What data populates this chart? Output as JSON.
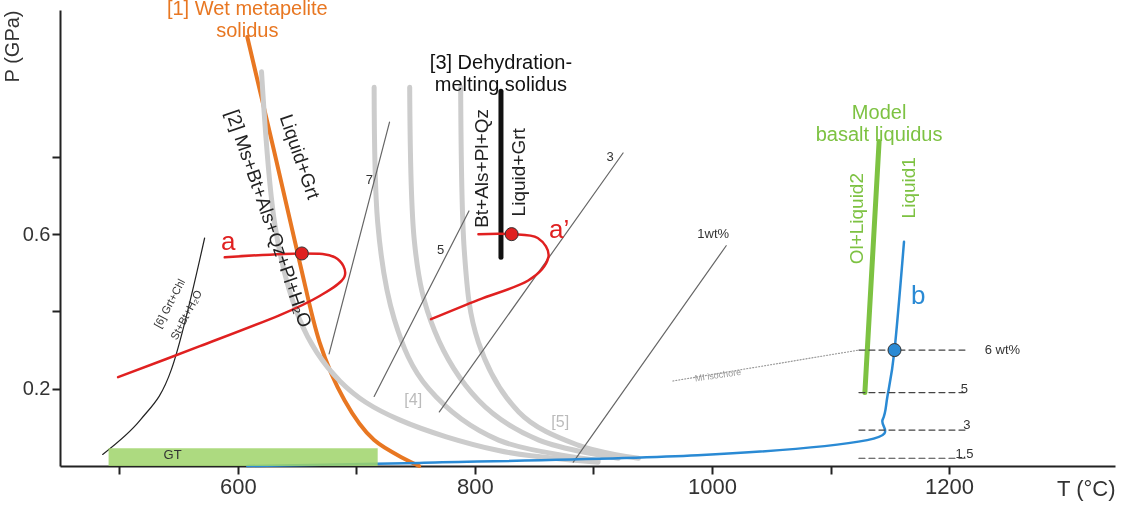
{
  "chart_data": {
    "type": "line",
    "xlabel": "T (°C)",
    "ylabel": "P (GPa)",
    "xlim": [
      450,
      1340
    ],
    "ylim": [
      0,
      1.18
    ],
    "xticks": [
      {
        "value": 500,
        "label": null
      },
      600,
      {
        "value": 700,
        "label": null
      },
      800,
      {
        "value": 900,
        "label": null
      },
      {
        "value": 1000,
        "label": "1000"
      },
      {
        "value": 1100,
        "label": null
      },
      {
        "value": 1200,
        "label": "1200"
      }
    ],
    "yticks": [
      0.2,
      {
        "value": 0.4,
        "label": null
      },
      0.6,
      {
        "value": 0.8,
        "label": null
      }
    ],
    "grid": false,
    "series": [
      {
        "type": "line",
        "name": "[1] Wet metapelite\nsolidus",
        "color": "#e87722",
        "x": [
          608,
          631,
          652,
          669,
          690,
          715,
          753
        ],
        "values": [
          1.11,
          0.81,
          0.53,
          0.32,
          0.17,
          0.067,
          0
        ]
      },
      {
        "type": "line",
        "color": "#cccccc",
        "x": [
          620,
          631,
          652,
          686,
          736,
          820,
          904
        ],
        "values": [
          1.02,
          0.63,
          0.38,
          0.22,
          0.12,
          0.04,
          0.01
        ]
      },
      {
        "type": "line",
        "color": "#cccccc",
        "x": [
          715,
          718,
          732,
          761,
          820,
          904
        ],
        "values": [
          0.98,
          0.63,
          0.38,
          0.2,
          0.067,
          0.015
        ]
      },
      {
        "type": "line",
        "color": "#cccccc",
        "x": [
          745,
          749,
          766,
          803,
          854,
          921
        ],
        "values": [
          0.98,
          0.58,
          0.35,
          0.17,
          0.067,
          0.02
        ]
      },
      {
        "type": "line",
        "color": "#cccccc",
        "x": [
          788,
          791,
          803,
          837,
          887,
          938
        ],
        "values": [
          0.98,
          0.56,
          0.32,
          0.14,
          0.054,
          0.02
        ]
      },
      {
        "type": "line",
        "name": "[3] Dehydration-\nmelting solidus",
        "color": "#111111",
        "x": [
          822,
          822
        ],
        "values": [
          0.97,
          0.54
        ]
      },
      {
        "type": "line",
        "name": "Model\nbasalt liquidus",
        "color": "#7dc242",
        "x": [
          1141,
          1129
        ],
        "values": [
          0.84,
          0.19
        ]
      },
      {
        "type": "line",
        "color": "#222222",
        "x": [
          486,
          518,
          544,
          572
        ],
        "values": [
          0.03,
          0.12,
          0.25,
          0.59
        ]
      },
      {
        "type": "line",
        "color": "#666666",
        "x": [
          677,
          728
        ],
        "values": [
          0.29,
          0.89
        ]
      },
      {
        "type": "line",
        "color": "#666666",
        "x": [
          715,
          795
        ],
        "values": [
          0.18,
          0.66
        ]
      },
      {
        "type": "line",
        "color": "#666666",
        "x": [
          770,
          925
        ],
        "values": [
          0.14,
          0.81
        ]
      },
      {
        "type": "line",
        "color": "#666666",
        "x": [
          883,
          1012
        ],
        "values": [
          0.01,
          0.57
        ]
      },
      {
        "type": "line",
        "color": "#e02020",
        "x": [
          589,
          654,
          682,
          690,
          669,
          635,
          568,
          499
        ],
        "values": [
          0.54,
          0.55,
          0.54,
          0.49,
          0.44,
          0.39,
          0.31,
          0.23
        ]
      },
      {
        "type": "line",
        "color": "#e02020",
        "x": [
          803,
          831,
          853,
          862,
          845,
          803,
          763
        ],
        "values": [
          0.6,
          0.6,
          0.59,
          0.54,
          0.48,
          0.43,
          0.38
        ]
      },
      {
        "type": "line",
        "color": "#2a8ad4",
        "x": [
          1162,
          1154,
          1148,
          1144,
          1131,
          988,
          753,
          608
        ],
        "values": [
          0.58,
          0.3,
          0.18,
          0.12,
          0.067,
          0.028,
          0.008,
          0
        ]
      },
      {
        "type": "line",
        "color": "#444444",
        "line_style": "dashed",
        "x": [
          1124,
          1215
        ],
        "values": [
          0.3,
          0.3
        ]
      },
      {
        "type": "line",
        "color": "#444444",
        "line_style": "dashed",
        "x": [
          1124,
          1215
        ],
        "values": [
          0.19,
          0.19
        ]
      },
      {
        "type": "line",
        "color": "#444444",
        "line_style": "dashed",
        "x": [
          1124,
          1215
        ],
        "values": [
          0.093,
          0.093
        ]
      },
      {
        "type": "line",
        "color": "#444444",
        "line_style": "dashed",
        "x": [
          1124,
          1215
        ],
        "values": [
          0.02,
          0.02
        ]
      },
      {
        "type": "line",
        "color": "#999999",
        "line_style": "dotted",
        "x": [
          967,
          1124
        ],
        "values": [
          0.22,
          0.3
        ]
      },
      {
        "type": "area",
        "color": "#9fd46a",
        "x": [
          491,
          718
        ],
        "values": [
          0.046,
          0.046
        ]
      },
      {
        "type": "scatter",
        "marker": "circle",
        "colors": [
          "#e02020",
          "#e02020",
          "#2a8ad4"
        ],
        "x": [
          654,
          831,
          1154
        ],
        "values": [
          0.55,
          0.6,
          0.3
        ]
      }
    ],
    "annotations": [
      "[2] Ms+Bt+Als+Qz+Pl+H₂O",
      "Liquid+Grt",
      "[6] Grt+Chl",
      "St+Bt+H₂O",
      "Bt+Als+Pl+Qz",
      "Liquid+Grt",
      "Ol+Liquid2",
      "Liquid1",
      "a",
      "a’",
      "b",
      "[4]",
      "[5]",
      "7",
      "5",
      "3",
      "1wt%",
      "MI isochore",
      "6 wt%",
      "5",
      "3",
      "1.5",
      "GT"
    ]
  }
}
